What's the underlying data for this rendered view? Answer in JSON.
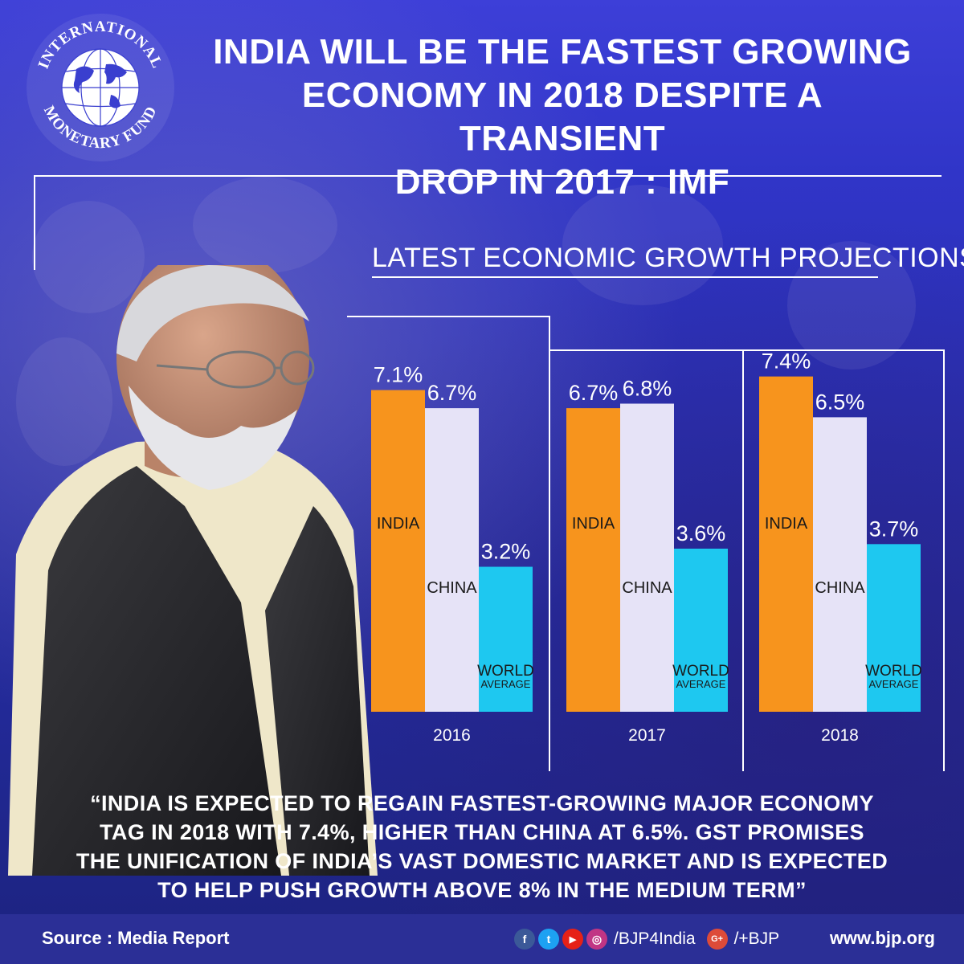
{
  "headline": {
    "line1": "INDIA WILL BE THE FASTEST GROWING",
    "line2": "ECONOMY IN 2018 DESPITE A TRANSIENT",
    "line3": "DROP IN 2017 : IMF"
  },
  "imf_logo": {
    "text_top": "INTERNATIONAL",
    "text_bottom": "MONETARY FUND"
  },
  "chart_data": {
    "type": "bar",
    "title": "LATEST ECONOMIC GROWTH PROJECTIONS",
    "categories": [
      "2016",
      "2017",
      "2018"
    ],
    "series": [
      {
        "name": "INDIA",
        "values": [
          7.1,
          6.7,
          7.4
        ],
        "labels": [
          "7.1%",
          "6.7%",
          "7.4%"
        ],
        "color": "#f7941d"
      },
      {
        "name": "CHINA",
        "values": [
          6.7,
          6.8,
          6.5
        ],
        "labels": [
          "6.7%",
          "6.8%",
          "6.5%"
        ],
        "color": "#e6e3f7"
      },
      {
        "name": "WORLD AVERAGE",
        "name_line1": "WORLD",
        "name_line2": "AVERAGE",
        "values": [
          3.2,
          3.6,
          3.7
        ],
        "labels": [
          "3.2%",
          "3.6%",
          "3.7%"
        ],
        "color": "#1ec8f0"
      }
    ],
    "ylim": [
      0,
      7.4
    ],
    "xlabel": "",
    "ylabel": ""
  },
  "quote": {
    "line1": "“INDIA IS EXPECTED TO REGAIN FASTEST-GROWING MAJOR ECONOMY",
    "line2": "TAG IN 2018 WITH 7.4%, HIGHER THAN CHINA AT 6.5%. GST PROMISES",
    "line3": "THE UNIFICATION OF INDIA’S VAST DOMESTIC MARKET AND IS EXPECTED",
    "line4": "TO HELP PUSH GROWTH ABOVE 8% IN THE MEDIUM TERM”"
  },
  "footer": {
    "source": "Source : Media Report",
    "handle1": "/BJP4India",
    "handle2": "/+BJP",
    "site": "www.bjp.org",
    "icons": {
      "facebook": "f",
      "twitter": "t",
      "youtube": "▶",
      "instagram": "◎",
      "gplus": "G+"
    }
  },
  "colors": {
    "india": "#f7941d",
    "china": "#e6e3f7",
    "world": "#1ec8f0",
    "background": "#2f34c4"
  }
}
